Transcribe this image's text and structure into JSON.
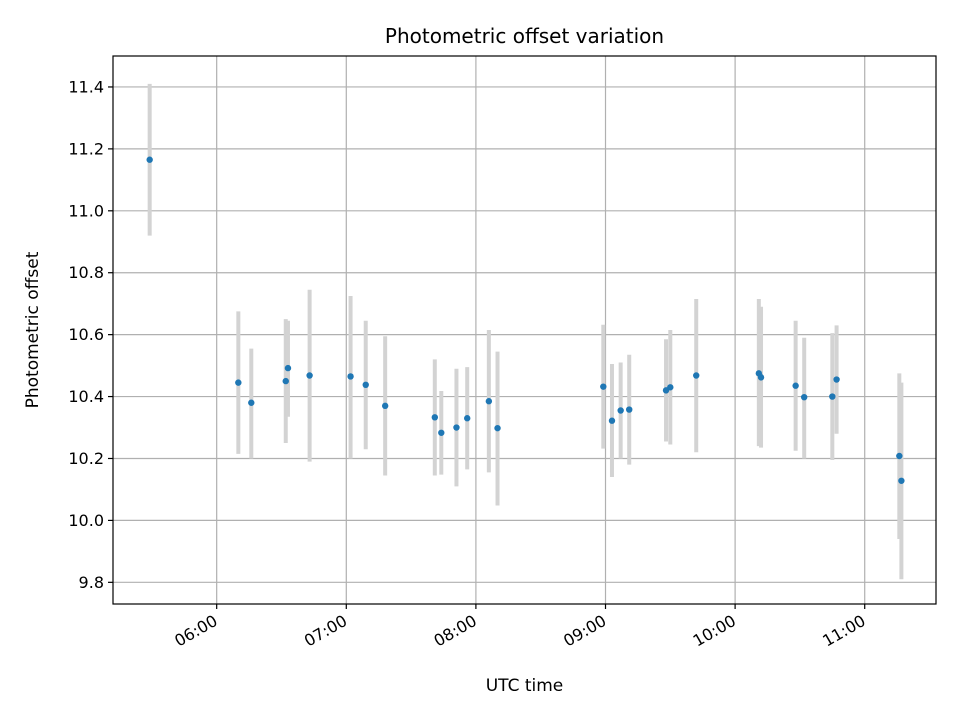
{
  "colors": {
    "marker": "#1f77b4",
    "errorbar": "#d3d3d3",
    "grid": "#b0b0b0",
    "axes": "#000000",
    "background": "#ffffff"
  },
  "chart_data": {
    "type": "scatter",
    "title": "Photometric offset variation",
    "xlabel": "UTC time",
    "ylabel": "Photometric offset",
    "x_unit": "hours (UTC)",
    "xlim": [
      5.2,
      11.55
    ],
    "ylim": [
      9.73,
      11.5
    ],
    "xticks": [
      6,
      7,
      8,
      9,
      10,
      11
    ],
    "xtick_labels": [
      "06:00",
      "07:00",
      "08:00",
      "09:00",
      "10:00",
      "11:00"
    ],
    "yticks": [
      9.8,
      10.0,
      10.2,
      10.4,
      10.6,
      10.8,
      11.0,
      11.2,
      11.4
    ],
    "ytick_labels": [
      "9.8",
      "10.0",
      "10.2",
      "10.4",
      "10.6",
      "10.8",
      "11.0",
      "11.2",
      "11.4"
    ],
    "grid": true,
    "points": [
      {
        "x": 5.483,
        "y": 11.165,
        "lo": 10.92,
        "hi": 11.41
      },
      {
        "x": 6.167,
        "y": 10.445,
        "lo": 10.215,
        "hi": 10.675
      },
      {
        "x": 6.267,
        "y": 10.38,
        "lo": 10.2,
        "hi": 10.555
      },
      {
        "x": 6.533,
        "y": 10.45,
        "lo": 10.25,
        "hi": 10.65
      },
      {
        "x": 6.55,
        "y": 10.492,
        "lo": 10.335,
        "hi": 10.645
      },
      {
        "x": 6.717,
        "y": 10.468,
        "lo": 10.19,
        "hi": 10.745
      },
      {
        "x": 7.033,
        "y": 10.465,
        "lo": 10.2,
        "hi": 10.725
      },
      {
        "x": 7.15,
        "y": 10.438,
        "lo": 10.23,
        "hi": 10.645
      },
      {
        "x": 7.3,
        "y": 10.37,
        "lo": 10.145,
        "hi": 10.595
      },
      {
        "x": 7.683,
        "y": 10.333,
        "lo": 10.145,
        "hi": 10.52
      },
      {
        "x": 7.733,
        "y": 10.283,
        "lo": 10.148,
        "hi": 10.418
      },
      {
        "x": 7.85,
        "y": 10.3,
        "lo": 10.11,
        "hi": 10.49
      },
      {
        "x": 7.933,
        "y": 10.33,
        "lo": 10.165,
        "hi": 10.495
      },
      {
        "x": 8.1,
        "y": 10.385,
        "lo": 10.155,
        "hi": 10.615
      },
      {
        "x": 8.167,
        "y": 10.298,
        "lo": 10.048,
        "hi": 10.545
      },
      {
        "x": 8.983,
        "y": 10.432,
        "lo": 10.232,
        "hi": 10.632
      },
      {
        "x": 9.05,
        "y": 10.322,
        "lo": 10.14,
        "hi": 10.505
      },
      {
        "x": 9.117,
        "y": 10.355,
        "lo": 10.2,
        "hi": 10.51
      },
      {
        "x": 9.183,
        "y": 10.358,
        "lo": 10.18,
        "hi": 10.535
      },
      {
        "x": 9.467,
        "y": 10.42,
        "lo": 10.255,
        "hi": 10.585
      },
      {
        "x": 9.5,
        "y": 10.43,
        "lo": 10.245,
        "hi": 10.615
      },
      {
        "x": 9.7,
        "y": 10.468,
        "lo": 10.22,
        "hi": 10.715
      },
      {
        "x": 10.183,
        "y": 10.475,
        "lo": 10.24,
        "hi": 10.715
      },
      {
        "x": 10.2,
        "y": 10.462,
        "lo": 10.235,
        "hi": 10.69
      },
      {
        "x": 10.467,
        "y": 10.435,
        "lo": 10.225,
        "hi": 10.645
      },
      {
        "x": 10.533,
        "y": 10.398,
        "lo": 10.2,
        "hi": 10.59
      },
      {
        "x": 10.75,
        "y": 10.4,
        "lo": 10.195,
        "hi": 10.605
      },
      {
        "x": 10.783,
        "y": 10.455,
        "lo": 10.28,
        "hi": 10.63
      },
      {
        "x": 11.267,
        "y": 10.208,
        "lo": 9.94,
        "hi": 10.475
      },
      {
        "x": 11.283,
        "y": 10.128,
        "lo": 9.81,
        "hi": 10.445
      }
    ]
  }
}
